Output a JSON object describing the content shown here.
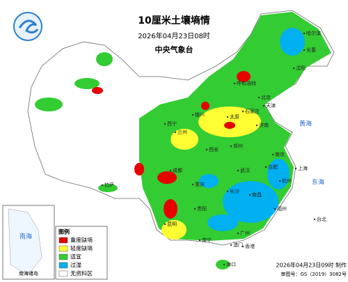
{
  "header": {
    "title": "10厘米土壤墒情",
    "date": "2026年04月23日08时",
    "agency": "中央气象台"
  },
  "legend": {
    "title": "图例",
    "items": [
      {
        "label": "重度缺墒",
        "color": "#e60000"
      },
      {
        "label": "轻度缺墒",
        "color": "#ffff33"
      },
      {
        "label": "适宜",
        "color": "#33cc33"
      },
      {
        "label": "过湿",
        "color": "#00b0f0"
      },
      {
        "label": "无资料区",
        "color": "#ffffff"
      }
    ]
  },
  "map": {
    "cities": [
      "哈尔滨",
      "长春",
      "沈阳",
      "呼和浩特",
      "北京",
      "天津",
      "石家庄",
      "太原",
      "济南",
      "银川",
      "西宁",
      "兰州",
      "西安",
      "郑州",
      "南京",
      "上海",
      "合肥",
      "武汉",
      "杭州",
      "拉萨",
      "成都",
      "重庆",
      "长沙",
      "南昌",
      "福州",
      "贵阳",
      "昆明",
      "南宁",
      "广州",
      "香港",
      "澳门",
      "台北",
      "海口"
    ],
    "seas": [
      "黄海",
      "东海",
      "南海"
    ],
    "inset": "南海诸岛"
  },
  "footer": {
    "made": "2026年04月23日09时 制作",
    "approval": "审图号：GS（2019）3082号"
  }
}
